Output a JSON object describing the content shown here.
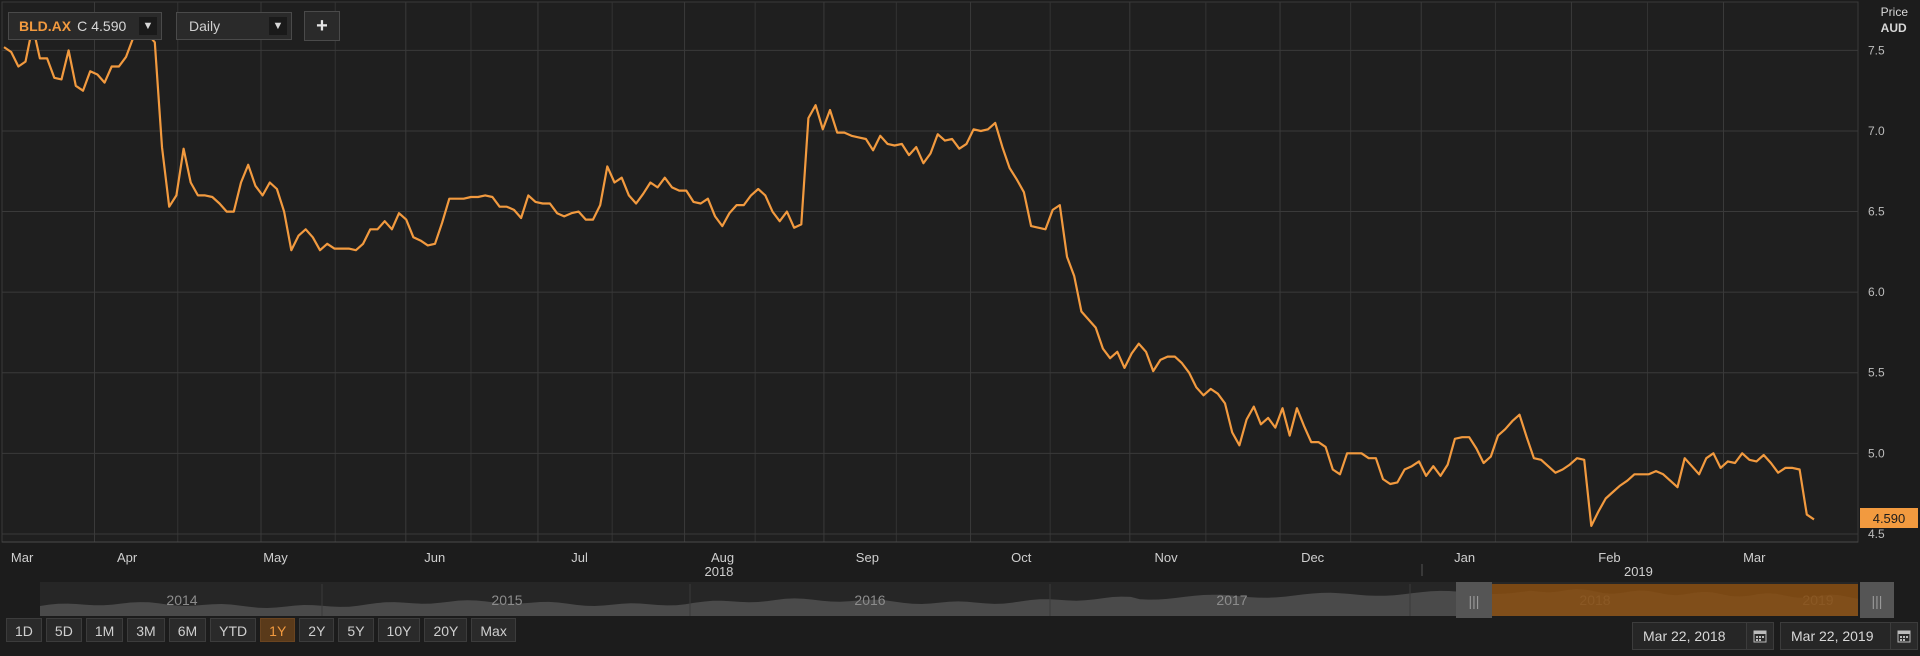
{
  "toolbar": {
    "ticker": "BLD.AX",
    "close_label": "C",
    "close_value": "4.590",
    "interval": "Daily",
    "add_label": "+"
  },
  "axis_header": {
    "line1": "Price",
    "line2": "AUD"
  },
  "price_tag": "4.590",
  "range_buttons": [
    "1D",
    "5D",
    "1M",
    "3M",
    "6M",
    "YTD",
    "1Y",
    "2Y",
    "5Y",
    "10Y",
    "20Y",
    "Max"
  ],
  "active_range": "1Y",
  "date_range": {
    "start": "Mar 22, 2018",
    "end": "Mar 22, 2019"
  },
  "navigator": {
    "years": [
      "2014",
      "2015",
      "2016",
      "2017",
      "2018",
      "2019"
    ]
  },
  "colors": {
    "line": "#f29a3f",
    "background": "#1c1c1c",
    "grid": "#3a3a3a"
  },
  "chart_data": {
    "type": "line",
    "series": [
      {
        "values": [
          7.52,
          7.49,
          7.4,
          7.43,
          7.65,
          7.45,
          7.45,
          7.33,
          7.32,
          7.5,
          7.28,
          7.25,
          7.37,
          7.35,
          7.3,
          7.4,
          7.4,
          7.46,
          7.58,
          7.62,
          7.6,
          7.55,
          6.9,
          6.53,
          6.6,
          6.89,
          6.68,
          6.6,
          6.6,
          6.59,
          6.55,
          6.5,
          6.5,
          6.68,
          6.79,
          6.66,
          6.6,
          6.68,
          6.64,
          6.5,
          6.26,
          6.35,
          6.39,
          6.34,
          6.26,
          6.3,
          6.27,
          6.27,
          6.27,
          6.26,
          6.3,
          6.39,
          6.39,
          6.44,
          6.39,
          6.49,
          6.45,
          6.34,
          6.32,
          6.29,
          6.3,
          6.43,
          6.58,
          6.58,
          6.58,
          6.59,
          6.59,
          6.6,
          6.59,
          6.53,
          6.53,
          6.51,
          6.46,
          6.6,
          6.56,
          6.55,
          6.55,
          6.49,
          6.47,
          6.49,
          6.5,
          6.45,
          6.45,
          6.54,
          6.78,
          6.68,
          6.71,
          6.6,
          6.55,
          6.61,
          6.68,
          6.65,
          6.71,
          6.65,
          6.63,
          6.63,
          6.56,
          6.55,
          6.58,
          6.47,
          6.41,
          6.49,
          6.54,
          6.54,
          6.6,
          6.64,
          6.6,
          6.5,
          6.44,
          6.5,
          6.4,
          6.42,
          7.08,
          7.16,
          7.01,
          7.13,
          6.99,
          6.99,
          6.97,
          6.96,
          6.95,
          6.88,
          6.97,
          6.92,
          6.91,
          6.92,
          6.85,
          6.9,
          6.8,
          6.86,
          6.98,
          6.94,
          6.95,
          6.89,
          6.92,
          7.01,
          7.0,
          7.01,
          7.05,
          6.9,
          6.77,
          6.7,
          6.62,
          6.41,
          6.4,
          6.39,
          6.51,
          6.54,
          6.22,
          6.1,
          5.88,
          5.83,
          5.78,
          5.65,
          5.59,
          5.63,
          5.53,
          5.62,
          5.68,
          5.63,
          5.51,
          5.58,
          5.6,
          5.6,
          5.56,
          5.5,
          5.41,
          5.36,
          5.4,
          5.37,
          5.31,
          5.13,
          5.05,
          5.21,
          5.29,
          5.18,
          5.22,
          5.16,
          5.28,
          5.11,
          5.28,
          5.17,
          5.07,
          5.07,
          5.04,
          4.9,
          4.87,
          5.0,
          5.0,
          5.0,
          4.97,
          4.97,
          4.84,
          4.81,
          4.82,
          4.9,
          4.92,
          4.95,
          4.86,
          4.92,
          4.86,
          4.93,
          5.09,
          5.1,
          5.1,
          5.03,
          4.94,
          4.98,
          5.11,
          5.15,
          5.2,
          5.24,
          5.1,
          4.97,
          4.96,
          4.92,
          4.88,
          4.9,
          4.93,
          4.97,
          4.96,
          4.55,
          4.64,
          4.72,
          4.76,
          4.8,
          4.83,
          4.87,
          4.87,
          4.87,
          4.89,
          4.87,
          4.83,
          4.79,
          4.97,
          4.92,
          4.87,
          4.97,
          5.0,
          4.91,
          4.95,
          4.94,
          5.0,
          4.96,
          4.95,
          4.99,
          4.94,
          4.88,
          4.91,
          4.91,
          4.9,
          4.62,
          4.59
        ]
      }
    ],
    "months": [
      "Mar",
      "Apr",
      "May",
      "Jun",
      "Jul",
      "Aug",
      "Sep",
      "Oct",
      "Nov",
      "Dec",
      "Jan",
      "Feb",
      "Mar"
    ],
    "years": [
      "2018",
      "2019"
    ],
    "yticks": [
      "4.5",
      "5.0",
      "5.5",
      "6.0",
      "6.5",
      "7.0",
      "7.5"
    ],
    "ylim": [
      4.45,
      7.8
    ],
    "ylabel": "Price AUD",
    "grid": true,
    "last_value": 4.59
  }
}
